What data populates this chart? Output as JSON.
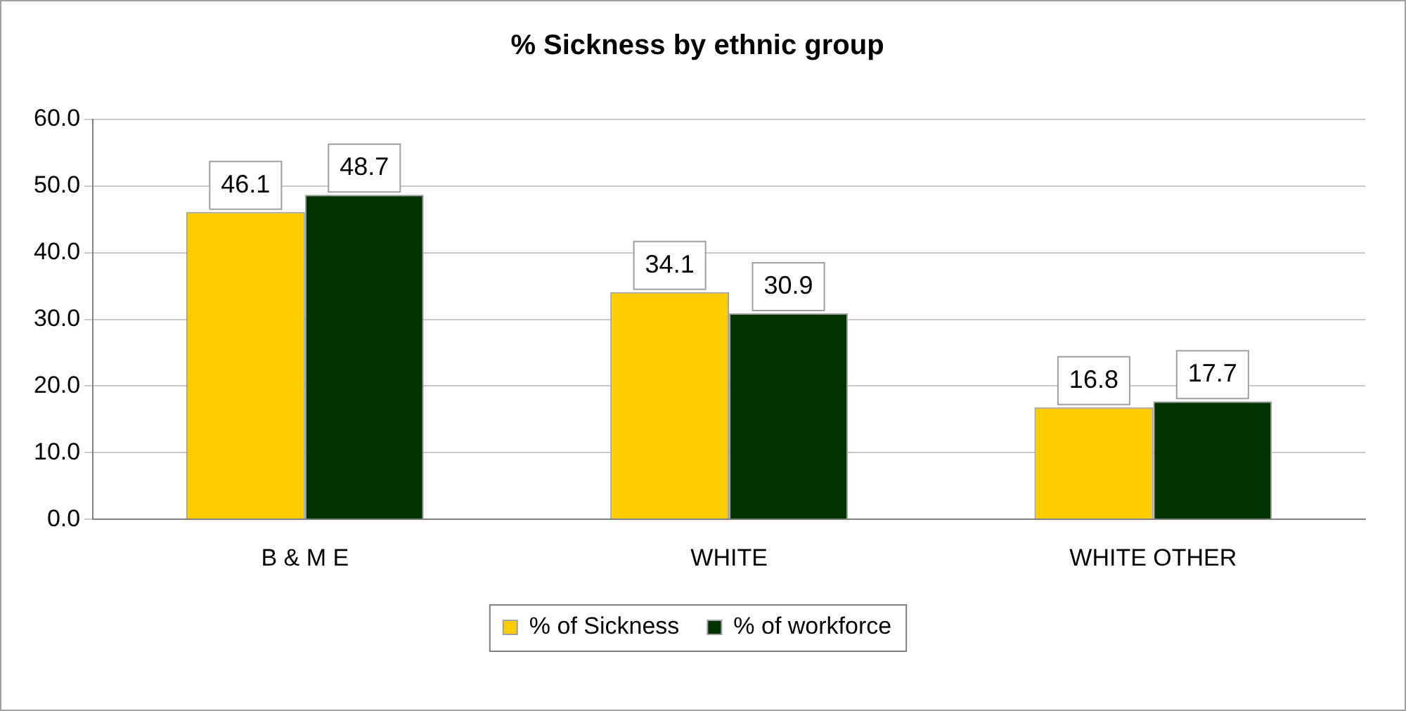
{
  "chart_data": {
    "type": "bar",
    "title": "% Sickness by ethnic group",
    "categories": [
      "B & M E",
      "WHITE",
      "WHITE OTHER"
    ],
    "series": [
      {
        "name": "% of Sickness",
        "color": "#ffcc00",
        "values": [
          46.1,
          34.1,
          16.8
        ]
      },
      {
        "name": "% of workforce",
        "color": "#003300",
        "values": [
          48.7,
          30.9,
          17.7
        ]
      }
    ],
    "ylim": [
      0,
      60
    ],
    "yticks": [
      {
        "value": 0,
        "label": "0.0"
      },
      {
        "value": 10,
        "label": "10.0"
      },
      {
        "value": 20,
        "label": "20.0"
      },
      {
        "value": 30,
        "label": "30.0"
      },
      {
        "value": 40,
        "label": "40.0"
      },
      {
        "value": 50,
        "label": "50.0"
      },
      {
        "value": 60,
        "label": "60.0"
      }
    ],
    "grid": "y",
    "legend": "bottom",
    "data_labels": true
  }
}
